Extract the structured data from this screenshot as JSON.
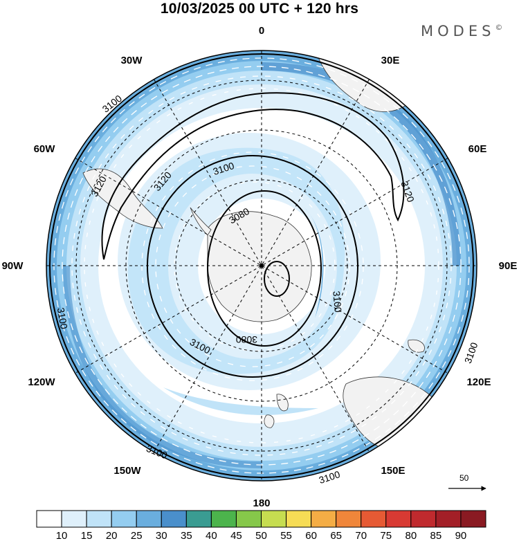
{
  "title": "10/03/2025  00 UTC  + 120 hrs",
  "brand": "MODES",
  "brand_mark": "©",
  "longitude_labels": {
    "lon_0": "0",
    "lon_30e": "30E",
    "lon_60e": "60E",
    "lon_90e": "90E",
    "lon_120e": "120E",
    "lon_150e": "150E",
    "lon_180": "180",
    "lon_150w": "150W",
    "lon_120w": "120W",
    "lon_90w": "90W",
    "lon_60w": "60W",
    "lon_30w": "30W"
  },
  "contour_labels": {
    "c3120_a": "3120",
    "c3120_b": "3120",
    "c3120_c": "3120",
    "c3100_a": "3100",
    "c3100_b": "3100",
    "c3100_c": "3100",
    "c3100_d": "3100",
    "c3100_e": "3100",
    "c3100_f": "3100",
    "c3100_g": "3100",
    "c3100_h": "3100",
    "c3080_a": "3080",
    "c3080_b": "3080"
  },
  "vector_reference": "50",
  "colorbar": {
    "labels": [
      "10",
      "15",
      "20",
      "25",
      "30",
      "35",
      "40",
      "45",
      "50",
      "55",
      "60",
      "65",
      "70",
      "75",
      "80",
      "85",
      "90"
    ],
    "colors": [
      "#ffffff",
      "#dff0fb",
      "#c0e3f8",
      "#94cdf0",
      "#6aaede",
      "#4a8fcb",
      "#3a9c92",
      "#4cb44c",
      "#86c84a",
      "#c6dd50",
      "#f6dc55",
      "#f4ad45",
      "#f0863a",
      "#e65a34",
      "#d83a33",
      "#c02a2e",
      "#a31f27",
      "#8a1a22"
    ]
  }
}
